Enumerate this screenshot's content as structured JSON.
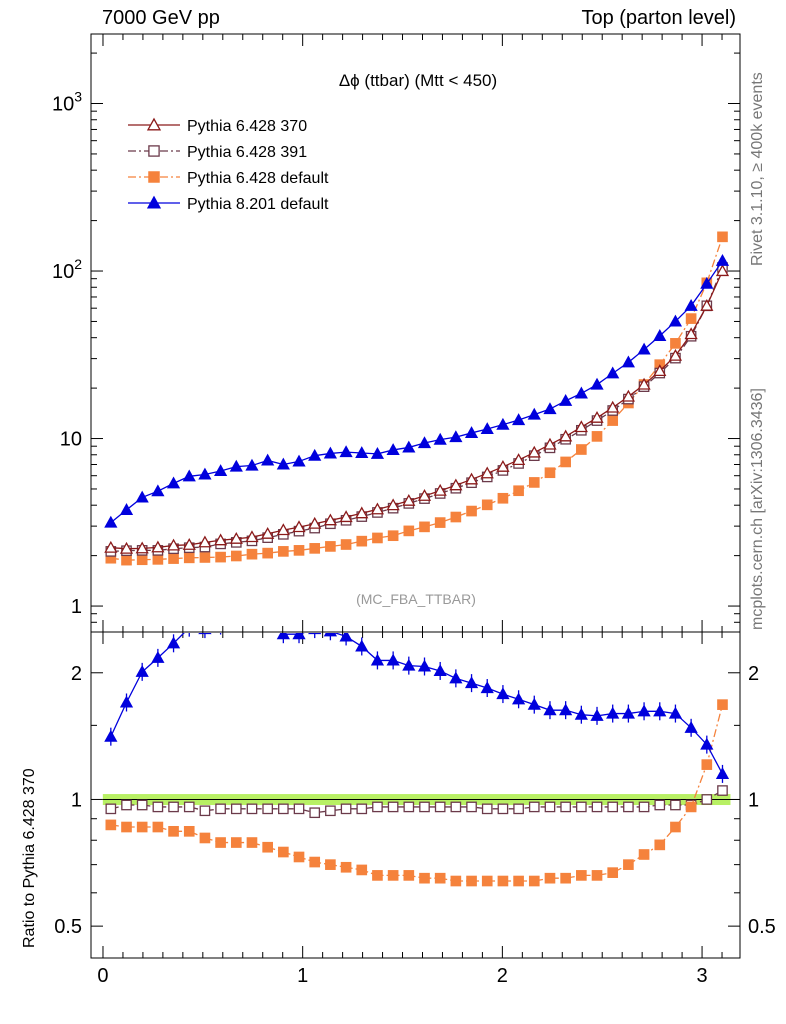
{
  "header": {
    "left": "7000 GeV pp",
    "right": "Top (parton level)"
  },
  "side": {
    "rivet": "Rivet 3.1.10, ≥ 400k events",
    "mcplots": "mcplots.cern.ch [arXiv:1306.3436]"
  },
  "chart_data": [
    {
      "type": "line",
      "title": "Δϕ (ttbar) (Mtt < 450)",
      "watermark": "(MC_FBA_TTBAR)",
      "xlim": [
        -0.06,
        3.19
      ],
      "ylim": [
        0.7,
        2600
      ],
      "yscale": "log",
      "ytick_labels": [
        "1",
        "10",
        "10^2",
        "10^3"
      ],
      "xtick_labels": [
        "0",
        "1",
        "2",
        "3"
      ],
      "legend_position": "top-left",
      "x": [
        0.0393,
        0.1178,
        0.1963,
        0.2749,
        0.3534,
        0.432,
        0.5105,
        0.589,
        0.6676,
        0.7461,
        0.8247,
        0.9032,
        0.9817,
        1.0603,
        1.1388,
        1.2174,
        1.2959,
        1.3744,
        1.453,
        1.5315,
        1.6101,
        1.6886,
        1.7671,
        1.8457,
        1.9242,
        2.0028,
        2.0813,
        2.1598,
        2.2384,
        2.3169,
        2.3955,
        2.474,
        2.5525,
        2.6311,
        2.7096,
        2.7882,
        2.8667,
        2.9452,
        3.0238,
        3.1023
      ],
      "series": [
        {
          "name": "Pythia 6.428 370",
          "color": "#8b1a1a",
          "marker": "open-triangle",
          "line": "solid",
          "values": [
            2.23,
            2.2,
            2.21,
            2.24,
            2.3,
            2.32,
            2.4,
            2.47,
            2.52,
            2.58,
            2.7,
            2.84,
            2.96,
            3.1,
            3.25,
            3.4,
            3.58,
            3.78,
            4.0,
            4.25,
            4.55,
            4.88,
            5.26,
            5.7,
            6.2,
            6.78,
            7.45,
            8.25,
            9.2,
            10.3,
            11.7,
            13.3,
            15.3,
            17.8,
            21.0,
            25.3,
            31.2,
            42.0,
            62.0,
            100.0
          ]
        },
        {
          "name": "Pythia 6.428 391",
          "color": "#6b3a4a",
          "marker": "open-square",
          "line": "dashdot",
          "values": [
            2.12,
            2.14,
            2.15,
            2.15,
            2.2,
            2.23,
            2.25,
            2.35,
            2.4,
            2.45,
            2.56,
            2.68,
            2.8,
            2.92,
            3.1,
            3.25,
            3.42,
            3.62,
            3.84,
            4.1,
            4.38,
            4.7,
            5.05,
            5.45,
            5.9,
            6.45,
            7.1,
            7.9,
            8.8,
            9.9,
            11.2,
            12.8,
            14.7,
            17.2,
            20.4,
            24.6,
            30.2,
            40.8,
            62.0,
            105.0
          ]
        },
        {
          "name": "Pythia 6.428 default",
          "color": "#f5823c",
          "marker": "filled-square",
          "line": "dashdot",
          "values": [
            1.93,
            1.88,
            1.89,
            1.9,
            1.92,
            1.94,
            1.95,
            1.96,
            1.99,
            2.04,
            2.07,
            2.12,
            2.15,
            2.21,
            2.27,
            2.33,
            2.44,
            2.55,
            2.63,
            2.81,
            2.97,
            3.15,
            3.4,
            3.69,
            4.02,
            4.4,
            4.88,
            5.47,
            6.25,
            7.25,
            8.6,
            10.3,
            12.8,
            16.3,
            21.0,
            27.6,
            37.0,
            52.0,
            85.0,
            160.0
          ]
        },
        {
          "name": "Pythia 8.201 default",
          "color": "#0000dd",
          "marker": "filled-triangle",
          "line": "solid",
          "values": [
            3.15,
            3.75,
            4.45,
            4.85,
            5.4,
            5.95,
            6.1,
            6.4,
            6.8,
            6.9,
            7.4,
            7.0,
            7.3,
            7.9,
            8.15,
            8.3,
            8.2,
            8.1,
            8.55,
            8.85,
            9.4,
            9.85,
            10.2,
            10.8,
            11.4,
            12.1,
            12.9,
            13.9,
            15.0,
            16.8,
            18.6,
            21.0,
            24.5,
            28.5,
            34.0,
            41.0,
            50.0,
            62.0,
            84.0,
            115.0
          ]
        }
      ]
    },
    {
      "type": "line",
      "ylabel": "Ratio to Pythia 6.428 370",
      "xlim": [
        -0.06,
        3.19
      ],
      "ylim": [
        0.42,
        2.5
      ],
      "yscale": "log",
      "ytick_labels": [
        "0.5",
        "1",
        "2"
      ],
      "reference_band": [
        0.97,
        1.03
      ],
      "series": [
        {
          "name": "Pythia 6.428 391",
          "values": [
            0.95,
            0.97,
            0.97,
            0.96,
            0.96,
            0.96,
            0.94,
            0.95,
            0.95,
            0.95,
            0.95,
            0.95,
            0.95,
            0.93,
            0.94,
            0.95,
            0.95,
            0.96,
            0.96,
            0.96,
            0.96,
            0.96,
            0.96,
            0.96,
            0.95,
            0.95,
            0.95,
            0.96,
            0.96,
            0.96,
            0.96,
            0.96,
            0.96,
            0.96,
            0.96,
            0.97,
            0.97,
            0.97,
            1.0,
            1.05
          ]
        },
        {
          "name": "Pythia 6.428 default",
          "values": [
            0.87,
            0.86,
            0.86,
            0.86,
            0.84,
            0.84,
            0.81,
            0.79,
            0.79,
            0.79,
            0.77,
            0.75,
            0.73,
            0.71,
            0.7,
            0.69,
            0.68,
            0.66,
            0.66,
            0.66,
            0.65,
            0.65,
            0.64,
            0.64,
            0.64,
            0.64,
            0.64,
            0.64,
            0.65,
            0.65,
            0.66,
            0.66,
            0.67,
            0.7,
            0.74,
            0.78,
            0.86,
            0.96,
            1.21,
            1.68
          ]
        },
        {
          "name": "Pythia 8.201 default",
          "values": [
            1.41,
            1.7,
            2.01,
            2.17,
            2.35,
            2.56,
            2.54,
            2.59,
            2.7,
            2.67,
            2.74,
            2.47,
            2.47,
            2.54,
            2.51,
            2.44,
            2.31,
            2.14,
            2.14,
            2.08,
            2.07,
            2.02,
            1.94,
            1.89,
            1.84,
            1.78,
            1.73,
            1.68,
            1.63,
            1.63,
            1.59,
            1.58,
            1.6,
            1.6,
            1.62,
            1.62,
            1.6,
            1.48,
            1.35,
            1.15
          ]
        }
      ]
    }
  ]
}
